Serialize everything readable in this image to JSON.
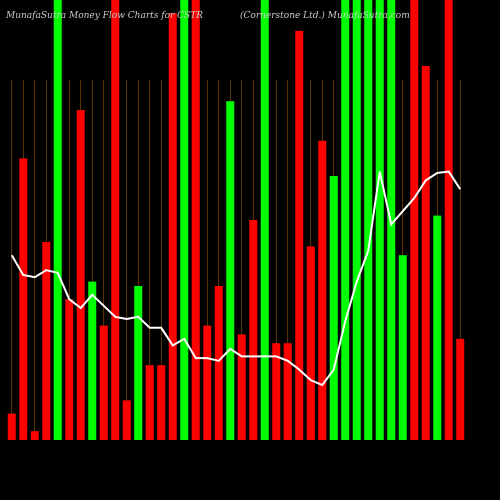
{
  "chart_data": {
    "type": "bar",
    "title": "MunafaSutra Money Flow Charts for CSTR",
    "subtitle": "(Cornerstone Ltd.) MunafaSutra.com",
    "categories": [
      null,
      null,
      null,
      null,
      null,
      null,
      null,
      null,
      null,
      null,
      null,
      null,
      null,
      null,
      null,
      null,
      null,
      null,
      null,
      null,
      null,
      null,
      null,
      null,
      null,
      null,
      null,
      null,
      null,
      null,
      null,
      null,
      null,
      null,
      null,
      null,
      null,
      null,
      null,
      null
    ],
    "ylim": [
      0,
      100
    ],
    "grid": true,
    "series": [
      {
        "type": "bar",
        "colors": [
          "#ff0000",
          "#ff0000",
          "#ff0000",
          "#ff0000",
          "#00ff00",
          "#ff0000",
          "#ff0000",
          "#00ff00",
          "#ff0000",
          "#ff0000",
          "#ff0000",
          "#00ff00",
          "#ff0000",
          "#ff0000",
          "#ff0000",
          "#00ff00",
          "#ff0000",
          "#ff0000",
          "#ff0000",
          "#00ff00",
          "#ff0000",
          "#ff0000",
          "#00ff00",
          "#ff0000",
          "#ff0000",
          "#ff0000",
          "#ff0000",
          "#ff0000",
          "#00ff00",
          "#00ff00",
          "#00ff00",
          "#00ff00",
          "#00ff00",
          "#00ff00",
          "#00ff00",
          "#ff0000",
          "#ff0000",
          "#00ff00",
          "#ff0000",
          "#ff0000"
        ],
        "values": [
          6,
          64,
          2,
          45,
          100,
          32,
          75,
          36,
          26,
          100,
          9,
          35,
          17,
          17,
          97,
          100,
          100,
          26,
          35,
          77,
          24,
          50,
          100,
          22,
          22,
          93,
          44,
          68,
          60,
          100,
          100,
          100,
          100,
          100,
          42,
          100,
          85,
          51,
          100,
          23
        ]
      },
      {
        "type": "line",
        "color": "#ffffff",
        "values": [
          42,
          37.5,
          37,
          38.6,
          38,
          32,
          30,
          33,
          30.5,
          28,
          27.5,
          28,
          25.5,
          25.5,
          21.5,
          23,
          18.6,
          18.6,
          18,
          20.7,
          19,
          19,
          19,
          19,
          18,
          16,
          13.6,
          12.5,
          16,
          27,
          36,
          43,
          61,
          49,
          52,
          55,
          59,
          60.7,
          61,
          57
        ]
      }
    ]
  }
}
